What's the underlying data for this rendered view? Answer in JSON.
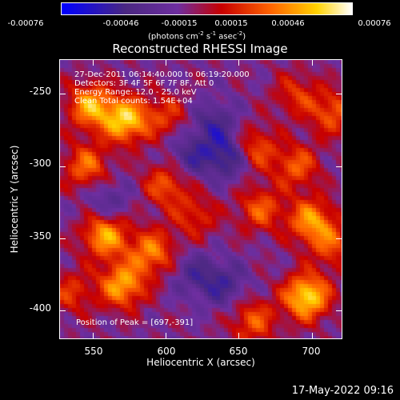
{
  "chart_data": {
    "type": "heatmap",
    "title": "Reconstructed RHESSI Image",
    "xlabel": "Heliocentric X (arcsec)",
    "ylabel": "Heliocentric Y (arcsec)",
    "xlim": [
      527,
      721
    ],
    "ylim": [
      -420,
      -226
    ],
    "xticks": [
      "550",
      "600",
      "650",
      "700"
    ],
    "yticks": [
      "-250",
      "-300",
      "-350",
      "-400"
    ],
    "colorbar": {
      "tick_labels": [
        "-0.00076",
        "-0.00046",
        "-0.00015",
        "0.00015",
        "0.00046",
        "0.00076"
      ],
      "range": [
        -0.00076,
        0.00076
      ],
      "units_prefix": "(photons cm",
      "units_exp1": "-2",
      "units_mid": " s",
      "units_exp2": "-1",
      "units_mid2": " asec",
      "units_exp3": "-2",
      "units_suffix": ")",
      "colors": [
        "#0000ff",
        "#4b2882",
        "#6e2ea0",
        "#c80000",
        "#ff6400",
        "#ffd200",
        "#ffffff"
      ]
    },
    "annotations": {
      "time_range": "27-Dec-2011 06:14:40.000 to 06:19:20.000",
      "detectors": "Detectors: 3F 4F 5F 6F 7F 8F, Att 0",
      "energy": "Energy Range: 12.0 - 25.0 keV",
      "clean": "Clean    Total counts: 1.54E+04",
      "peak": "Position of Peak = [697,-391]"
    },
    "hot_spots": [
      {
        "x": 697,
        "y": -391,
        "value": 0.00076
      },
      {
        "x": 572,
        "y": -268,
        "value": 0.0007
      },
      {
        "x": 548,
        "y": -258,
        "value": 0.0006
      },
      {
        "x": 558,
        "y": -348,
        "value": 0.00062
      },
      {
        "x": 570,
        "y": -383,
        "value": 0.0006
      },
      {
        "x": 590,
        "y": -360,
        "value": 0.0005
      },
      {
        "x": 700,
        "y": -338,
        "value": 0.00055
      },
      {
        "x": 690,
        "y": -300,
        "value": 0.0004
      },
      {
        "x": 660,
        "y": -288,
        "value": 0.00045
      },
      {
        "x": 665,
        "y": -330,
        "value": 0.0004
      },
      {
        "x": 600,
        "y": -313,
        "value": 0.0004
      },
      {
        "x": 545,
        "y": -300,
        "value": 0.00045
      },
      {
        "x": 715,
        "y": -263,
        "value": 0.0004
      },
      {
        "x": 690,
        "y": -250,
        "value": 0.0003
      },
      {
        "x": 660,
        "y": -408,
        "value": 0.0004
      },
      {
        "x": 620,
        "y": -335,
        "value": 0.0003
      },
      {
        "x": 715,
        "y": -355,
        "value": 0.00035
      },
      {
        "x": 600,
        "y": -265,
        "value": 0.0003
      },
      {
        "x": 535,
        "y": -388,
        "value": 0.0003
      }
    ],
    "cold_spots": [
      {
        "x": 644,
        "y": -293,
        "value": -0.00046
      },
      {
        "x": 633,
        "y": -270,
        "value": -0.0003
      },
      {
        "x": 617,
        "y": -293,
        "value": -0.0003
      },
      {
        "x": 640,
        "y": -383,
        "value": -0.0003
      },
      {
        "x": 560,
        "y": -325,
        "value": -0.00025
      },
      {
        "x": 620,
        "y": -375,
        "value": -0.00025
      }
    ]
  },
  "timestamp": "17-May-2022 09:16"
}
